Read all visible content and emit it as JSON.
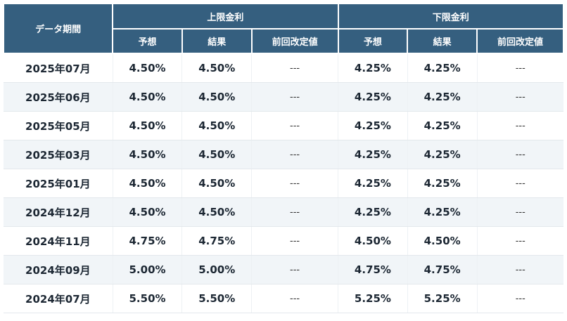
{
  "table": {
    "period_header": "データ期間",
    "groups": [
      {
        "label": "上限金利"
      },
      {
        "label": "下限金利"
      }
    ],
    "sub_headers": [
      "予想",
      "結果",
      "前回改定値",
      "予想",
      "結果",
      "前回改定値"
    ],
    "rows": [
      {
        "period": "2025年07月",
        "upper_forecast": "4.50%",
        "upper_result": "4.50%",
        "upper_revised": "---",
        "lower_forecast": "4.25%",
        "lower_result": "4.25%",
        "lower_revised": "---"
      },
      {
        "period": "2025年06月",
        "upper_forecast": "4.50%",
        "upper_result": "4.50%",
        "upper_revised": "---",
        "lower_forecast": "4.25%",
        "lower_result": "4.25%",
        "lower_revised": "---"
      },
      {
        "period": "2025年05月",
        "upper_forecast": "4.50%",
        "upper_result": "4.50%",
        "upper_revised": "---",
        "lower_forecast": "4.25%",
        "lower_result": "4.25%",
        "lower_revised": "---"
      },
      {
        "period": "2025年03月",
        "upper_forecast": "4.50%",
        "upper_result": "4.50%",
        "upper_revised": "---",
        "lower_forecast": "4.25%",
        "lower_result": "4.25%",
        "lower_revised": "---"
      },
      {
        "period": "2025年01月",
        "upper_forecast": "4.50%",
        "upper_result": "4.50%",
        "upper_revised": "---",
        "lower_forecast": "4.25%",
        "lower_result": "4.25%",
        "lower_revised": "---"
      },
      {
        "period": "2024年12月",
        "upper_forecast": "4.50%",
        "upper_result": "4.50%",
        "upper_revised": "---",
        "lower_forecast": "4.25%",
        "lower_result": "4.25%",
        "lower_revised": "---"
      },
      {
        "period": "2024年11月",
        "upper_forecast": "4.75%",
        "upper_result": "4.75%",
        "upper_revised": "---",
        "lower_forecast": "4.50%",
        "lower_result": "4.50%",
        "lower_revised": "---"
      },
      {
        "period": "2024年09月",
        "upper_forecast": "5.00%",
        "upper_result": "5.00%",
        "upper_revised": "---",
        "lower_forecast": "4.75%",
        "lower_result": "4.75%",
        "lower_revised": "---"
      },
      {
        "period": "2024年07月",
        "upper_forecast": "5.50%",
        "upper_result": "5.50%",
        "upper_revised": "---",
        "lower_forecast": "5.25%",
        "lower_result": "5.25%",
        "lower_revised": "---"
      }
    ]
  },
  "colors": {
    "header_bg": "#355f7f",
    "header_text": "#ffffff",
    "row_alt_bg": "#f1f5f8",
    "body_text": "#1c2733"
  }
}
